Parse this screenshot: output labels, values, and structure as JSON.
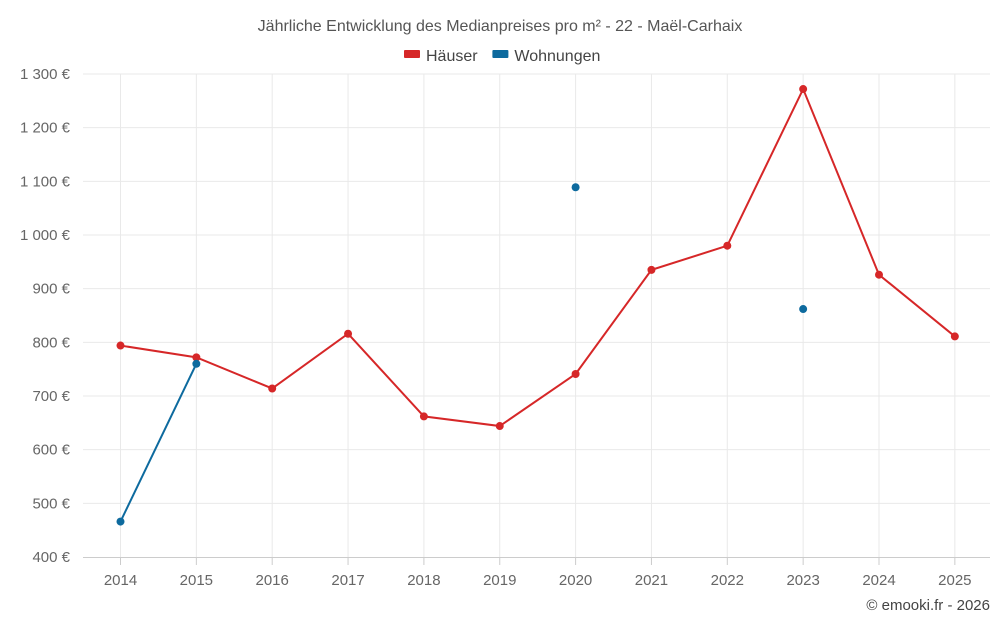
{
  "chart_data": {
    "type": "line",
    "title": "Jährliche Entwicklung des Medianpreises pro m² - 22 - Maël-Carhaix",
    "categories": [
      "2014",
      "2015",
      "2016",
      "2017",
      "2018",
      "2019",
      "2020",
      "2021",
      "2022",
      "2023",
      "2024",
      "2025"
    ],
    "series": [
      {
        "name": "Häuser",
        "color": "#d62728",
        "values": [
          794,
          772,
          714,
          816,
          662,
          644,
          741,
          935,
          980,
          1272,
          926,
          811
        ]
      },
      {
        "name": "Wohnungen",
        "color": "#0d6a9e",
        "values": [
          466,
          760,
          null,
          null,
          null,
          null,
          1089,
          null,
          null,
          862,
          null,
          null
        ]
      }
    ],
    "y_ticks": [
      "400 €",
      "500 €",
      "600 €",
      "700 €",
      "800 €",
      "900 €",
      "1 000 €",
      "1 100 €",
      "1 200 €",
      "1 300 €"
    ],
    "ylim": [
      400,
      1300
    ],
    "ylabel": "",
    "xlabel": "",
    "legend_position": "top-center",
    "grid": true
  },
  "credit": "© emooki.fr - 2026"
}
